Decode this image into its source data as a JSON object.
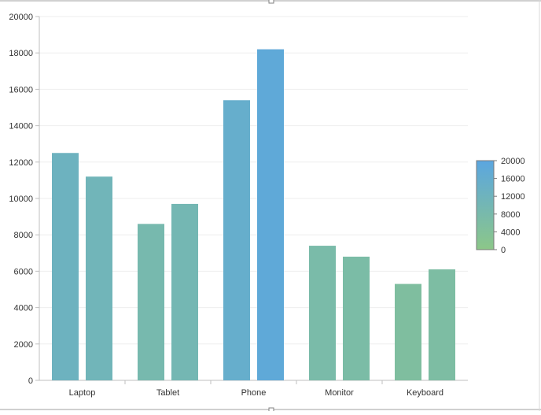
{
  "chart_data": {
    "type": "bar",
    "categories": [
      "Laptop",
      "Tablet",
      "Phone",
      "Monitor",
      "Keyboard"
    ],
    "series": [
      {
        "values": [
          12500,
          8600,
          15400,
          7400,
          5300
        ]
      },
      {
        "values": [
          11200,
          9700,
          18200,
          6800,
          6100
        ]
      }
    ],
    "title": "",
    "xlabel": "",
    "ylabel": "",
    "ylim": [
      0,
      20000
    ],
    "yticks": [
      "0",
      "2000",
      "4000",
      "6000",
      "8000",
      "10000",
      "12000",
      "14000",
      "16000",
      "18000",
      "20000"
    ],
    "grid": true,
    "color_scale": {
      "min": 0,
      "max": 20000,
      "low_color": "#8cc788",
      "high_color": "#5ba6e0",
      "ticks": [
        "0",
        "4000",
        "8000",
        "12000",
        "16000",
        "20000"
      ],
      "placement": "right"
    }
  }
}
